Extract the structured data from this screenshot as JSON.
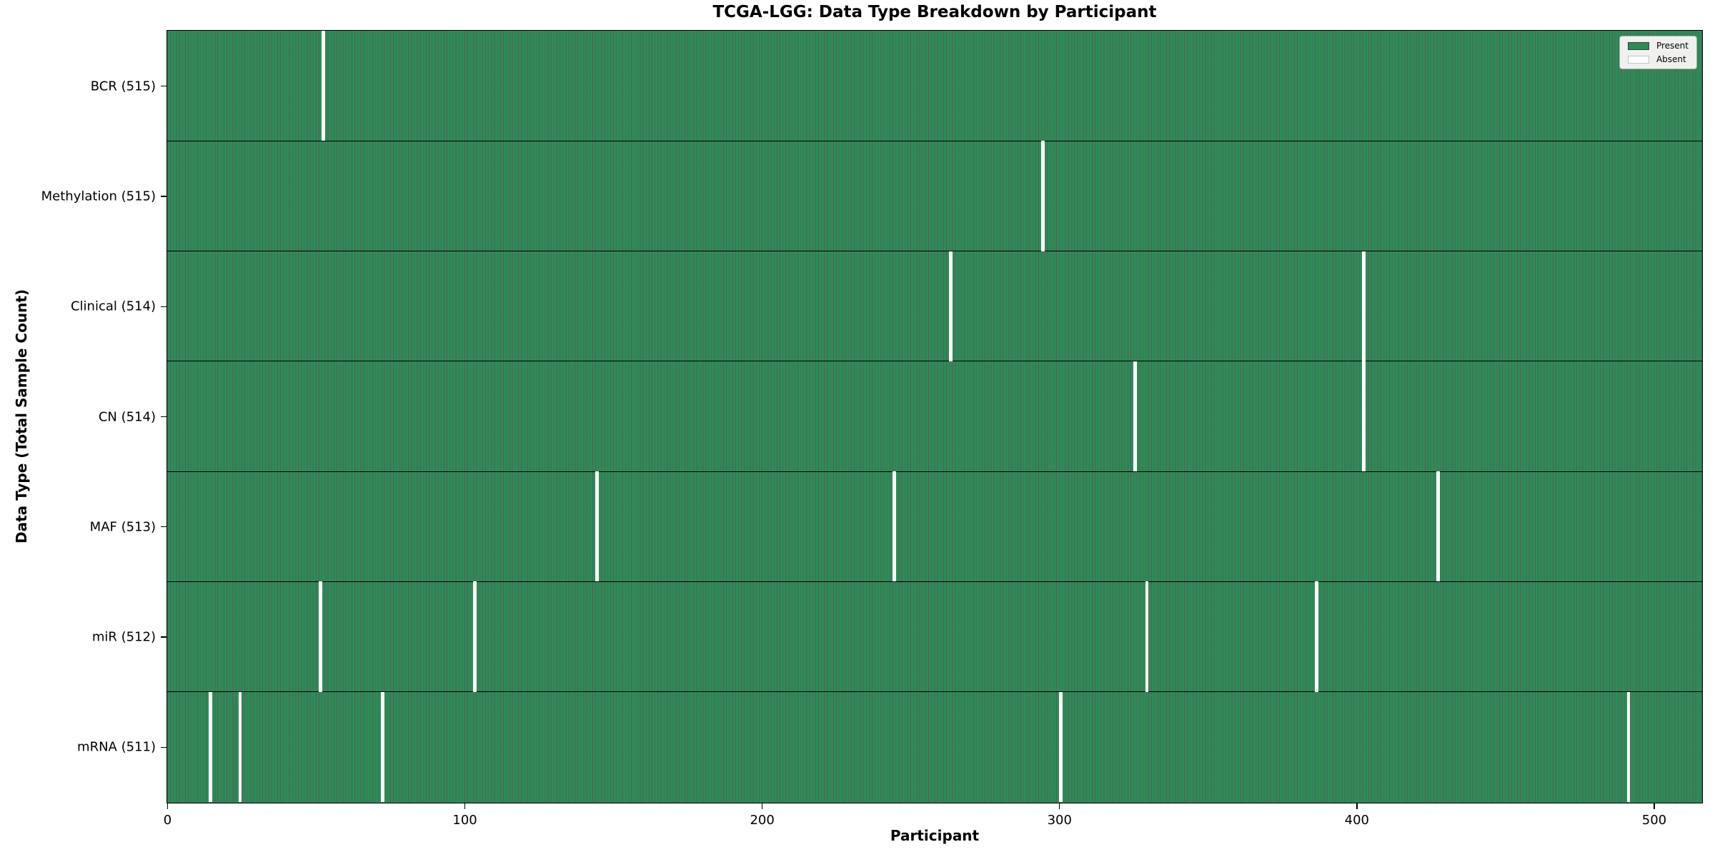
{
  "title": "TCGA-LGG: Data Type Breakdown by Participant",
  "axes": {
    "xlabel": "Participant",
    "ylabel": "Data Type (Total Sample Count)"
  },
  "legend": {
    "present": "Present",
    "absent": "Absent"
  },
  "colors": {
    "present": "#2e8b57",
    "absent": "#ffffff",
    "bar_edge": "#0f3d26",
    "separator": "#000000"
  },
  "chart_data": {
    "type": "heatmap",
    "title": "TCGA-LGG: Data Type Breakdown by Participant",
    "xlabel": "Participant",
    "ylabel": "Data Type (Total Sample Count)",
    "x_ticks": [
      0,
      100,
      200,
      300,
      400,
      500
    ],
    "xlim": [
      0,
      516
    ],
    "n_participants": 516,
    "grid": false,
    "legend_position": "upper right",
    "legend_entries": [
      {
        "label": "Present",
        "color": "#2e8b57"
      },
      {
        "label": "Absent",
        "color": "#ffffff"
      }
    ],
    "rows": [
      {
        "name": "BCR",
        "label": "BCR (515)",
        "present_count": 515,
        "absent_participants": [
          52
        ]
      },
      {
        "name": "Methylation",
        "label": "Methylation (515)",
        "present_count": 515,
        "absent_participants": [
          294
        ]
      },
      {
        "name": "Clinical",
        "label": "Clinical (514)",
        "present_count": 514,
        "absent_participants": [
          263,
          402
        ]
      },
      {
        "name": "CN",
        "label": "CN (514)",
        "present_count": 514,
        "absent_participants": [
          325,
          402
        ]
      },
      {
        "name": "MAF",
        "label": "MAF (513)",
        "present_count": 513,
        "absent_participants": [
          144,
          244,
          427
        ]
      },
      {
        "name": "miR",
        "label": "miR (512)",
        "present_count": 512,
        "absent_participants": [
          51,
          103,
          329,
          386
        ]
      },
      {
        "name": "mRNA",
        "label": "mRNA (511)",
        "present_count": 511,
        "absent_participants": [
          14,
          24,
          72,
          300,
          491
        ]
      }
    ]
  }
}
